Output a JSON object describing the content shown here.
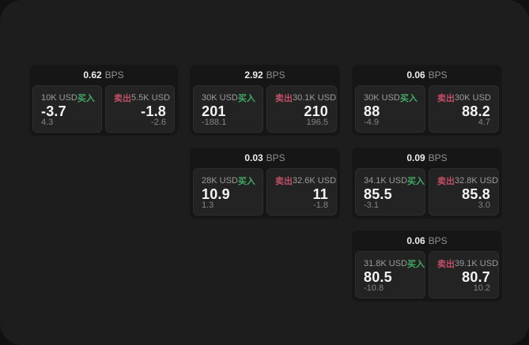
{
  "labels": {
    "bps_unit": "BPS",
    "buy": "买入",
    "sell": "卖出"
  },
  "colors": {
    "buy_green": "#41a964",
    "sell_red": "#bf4f66",
    "window_bg": "#1d1d1d",
    "card_bg": "#161616",
    "panel_bg": "#232323"
  },
  "cards": [
    {
      "bps": "0.62",
      "buy": {
        "amount": "10K USD",
        "value": "-3.7",
        "delta": "4.3"
      },
      "sell": {
        "amount": "5.5K USD",
        "value": "-1.8",
        "delta": "-2.6"
      }
    },
    {
      "bps": "2.92",
      "buy": {
        "amount": "30K USD",
        "value": "201",
        "delta": "-188.1"
      },
      "sell": {
        "amount": "30.1K USD",
        "value": "210",
        "delta": "196.5"
      }
    },
    {
      "bps": "0.06",
      "buy": {
        "amount": "30K USD",
        "value": "88",
        "delta": "-4.9"
      },
      "sell": {
        "amount": "30K USD",
        "value": "88.2",
        "delta": "4.7"
      }
    },
    {
      "bps": "0.03",
      "buy": {
        "amount": "28K USD",
        "value": "10.9",
        "delta": "1.3"
      },
      "sell": {
        "amount": "32.6K USD",
        "value": "11",
        "delta": "-1.8"
      }
    },
    {
      "bps": "0.09",
      "buy": {
        "amount": "34.1K USD",
        "value": "85.5",
        "delta": "-3.1"
      },
      "sell": {
        "amount": "32.8K USD",
        "value": "85.8",
        "delta": "3.0"
      }
    },
    {
      "bps": "0.06",
      "buy": {
        "amount": "31.8K USD",
        "value": "80.5",
        "delta": "-10.8"
      },
      "sell": {
        "amount": "39.1K USD",
        "value": "80.7",
        "delta": "10.2"
      }
    }
  ]
}
